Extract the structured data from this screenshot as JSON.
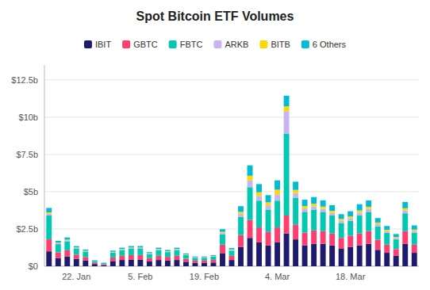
{
  "chart_data": {
    "type": "bar",
    "title": "Spot Bitcoin ETF Volumes",
    "stacked": true,
    "grid": true,
    "legend": "top",
    "categories": [
      null,
      null,
      null,
      "22. Jan",
      null,
      null,
      null,
      null,
      null,
      null,
      "5. Feb",
      null,
      null,
      null,
      null,
      null,
      null,
      "19. Feb",
      null,
      null,
      null,
      null,
      null,
      null,
      null,
      "4. Mar",
      null,
      null,
      null,
      null,
      null,
      null,
      null,
      "18. Mar",
      null,
      null,
      null,
      null,
      null,
      null,
      null
    ],
    "ylim": [
      0,
      13.5
    ],
    "yticks": [
      {
        "value": 0,
        "label": "$0"
      },
      {
        "value": 2.5,
        "label": "$2.5b"
      },
      {
        "value": 5.0,
        "label": "$5b"
      },
      {
        "value": 7.5,
        "label": "$7.5b"
      },
      {
        "value": 10.0,
        "label": "$10b"
      },
      {
        "value": 12.5,
        "label": "$12.5b"
      }
    ],
    "series": [
      {
        "name": "IBIT",
        "color": "#1e1b6e",
        "values": [
          1.0,
          0.55,
          0.65,
          0.5,
          0.38,
          0.15,
          0.08,
          0.35,
          0.42,
          0.45,
          0.45,
          0.32,
          0.42,
          0.38,
          0.42,
          0.3,
          0.22,
          0.22,
          0.25,
          0.85,
          0.42,
          1.3,
          1.9,
          1.6,
          1.4,
          1.6,
          2.2,
          1.8,
          1.4,
          1.5,
          1.5,
          1.4,
          1.2,
          1.3,
          1.4,
          1.5,
          1.1,
          0.9,
          0.7,
          1.5,
          0.9
        ]
      },
      {
        "name": "GBTC",
        "color": "#ff3d6e",
        "values": [
          0.8,
          0.38,
          0.42,
          0.28,
          0.24,
          0.09,
          0.06,
          0.24,
          0.28,
          0.3,
          0.3,
          0.22,
          0.28,
          0.25,
          0.28,
          0.2,
          0.16,
          0.16,
          0.18,
          0.6,
          0.28,
          0.8,
          1.2,
          1.0,
          0.9,
          1.0,
          1.2,
          1.0,
          0.85,
          0.9,
          0.85,
          0.8,
          0.7,
          0.75,
          0.8,
          0.85,
          0.68,
          0.55,
          0.45,
          0.85,
          0.55
        ]
      },
      {
        "name": "FBTC",
        "color": "#00c9b1",
        "values": [
          1.6,
          0.55,
          0.6,
          0.4,
          0.35,
          0.12,
          0.07,
          0.32,
          0.38,
          0.42,
          0.42,
          0.28,
          0.38,
          0.32,
          0.38,
          0.25,
          0.19,
          0.19,
          0.22,
          0.7,
          0.35,
          1.2,
          2.2,
          1.8,
          1.5,
          1.8,
          5.5,
          1.8,
          1.4,
          1.4,
          1.3,
          1.2,
          1.0,
          1.0,
          1.2,
          1.3,
          0.9,
          0.8,
          0.65,
          1.2,
          0.8
        ]
      },
      {
        "name": "ARKB",
        "color": "#c8b4f0",
        "values": [
          0.12,
          0.06,
          0.07,
          0.045,
          0.038,
          0.012,
          0.008,
          0.035,
          0.042,
          0.048,
          0.048,
          0.032,
          0.042,
          0.035,
          0.042,
          0.028,
          0.022,
          0.022,
          0.025,
          0.09,
          0.045,
          0.2,
          0.45,
          0.32,
          0.28,
          0.42,
          1.5,
          0.3,
          0.22,
          0.22,
          0.2,
          0.18,
          0.15,
          0.16,
          0.19,
          0.19,
          0.14,
          0.11,
          0.09,
          0.19,
          0.12
        ]
      },
      {
        "name": "BITB",
        "color": "#ffd700",
        "values": [
          0.09,
          0.045,
          0.05,
          0.034,
          0.028,
          0.009,
          0.006,
          0.026,
          0.032,
          0.036,
          0.036,
          0.024,
          0.032,
          0.026,
          0.032,
          0.021,
          0.016,
          0.016,
          0.019,
          0.068,
          0.034,
          0.15,
          0.32,
          0.24,
          0.21,
          0.32,
          0.32,
          0.22,
          0.17,
          0.17,
          0.15,
          0.14,
          0.12,
          0.13,
          0.15,
          0.15,
          0.11,
          0.088,
          0.068,
          0.15,
          0.09
        ]
      },
      {
        "name": "6 Others",
        "color": "#00bcd4",
        "values": [
          0.3,
          0.12,
          0.14,
          0.09,
          0.08,
          0.03,
          0.018,
          0.08,
          0.09,
          0.1,
          0.1,
          0.07,
          0.09,
          0.08,
          0.09,
          0.06,
          0.05,
          0.05,
          0.056,
          0.18,
          0.09,
          0.38,
          0.7,
          0.55,
          0.48,
          0.62,
          0.72,
          0.55,
          0.42,
          0.45,
          0.42,
          0.38,
          0.32,
          0.35,
          0.42,
          0.42,
          0.3,
          0.25,
          0.2,
          0.42,
          0.28
        ]
      }
    ]
  }
}
